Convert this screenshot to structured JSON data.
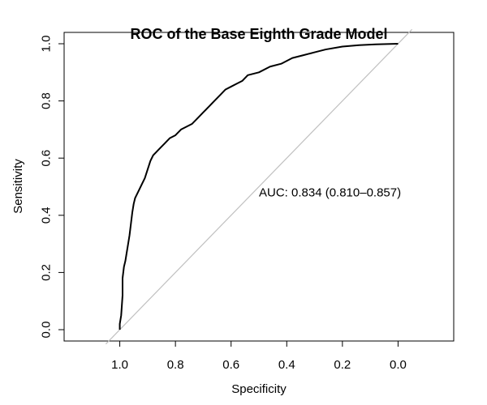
{
  "chart_data": {
    "type": "line",
    "title": "ROC of the Base Eighth Grade Model",
    "xlabel": "Specificity",
    "ylabel": "Sensitivity",
    "x_reversed": true,
    "xlim": [
      1.2,
      -0.2
    ],
    "ylim": [
      0,
      1.0
    ],
    "xticks": [
      "1.0",
      "0.8",
      "0.6",
      "0.4",
      "0.2",
      "0.0"
    ],
    "xtick_values": [
      1.0,
      0.8,
      0.6,
      0.4,
      0.2,
      0.0
    ],
    "yticks": [
      "0.0",
      "0.2",
      "0.4",
      "0.6",
      "0.8",
      "1.0"
    ],
    "ytick_values": [
      0.0,
      0.2,
      0.4,
      0.6,
      0.8,
      1.0
    ],
    "grid": false,
    "annotation": "AUC: 0.834 (0.810–0.857)",
    "annotation_position": {
      "x": 0.5,
      "y": 0.48
    },
    "reference_line": {
      "color": "#c0c0c0",
      "points": [
        [
          1.0,
          0.0
        ],
        [
          0.0,
          1.0
        ]
      ]
    },
    "series": [
      {
        "color": "#000000",
        "specificity": [
          1.0,
          1.0,
          0.995,
          0.99,
          0.99,
          0.985,
          0.98,
          0.975,
          0.97,
          0.965,
          0.96,
          0.955,
          0.95,
          0.945,
          0.94,
          0.93,
          0.92,
          0.91,
          0.9,
          0.89,
          0.88,
          0.87,
          0.86,
          0.85,
          0.84,
          0.82,
          0.8,
          0.78,
          0.76,
          0.74,
          0.72,
          0.7,
          0.68,
          0.66,
          0.64,
          0.62,
          0.6,
          0.58,
          0.56,
          0.54,
          0.5,
          0.46,
          0.42,
          0.38,
          0.34,
          0.3,
          0.26,
          0.2,
          0.14,
          0.08,
          0.0
        ],
        "sensitivity": [
          0.0,
          0.02,
          0.05,
          0.12,
          0.18,
          0.22,
          0.24,
          0.27,
          0.3,
          0.33,
          0.37,
          0.41,
          0.44,
          0.46,
          0.47,
          0.49,
          0.51,
          0.53,
          0.56,
          0.59,
          0.61,
          0.62,
          0.63,
          0.64,
          0.65,
          0.67,
          0.68,
          0.7,
          0.71,
          0.72,
          0.74,
          0.76,
          0.78,
          0.8,
          0.82,
          0.84,
          0.85,
          0.86,
          0.87,
          0.89,
          0.9,
          0.92,
          0.93,
          0.95,
          0.96,
          0.97,
          0.98,
          0.99,
          0.995,
          0.998,
          1.0
        ]
      }
    ]
  }
}
